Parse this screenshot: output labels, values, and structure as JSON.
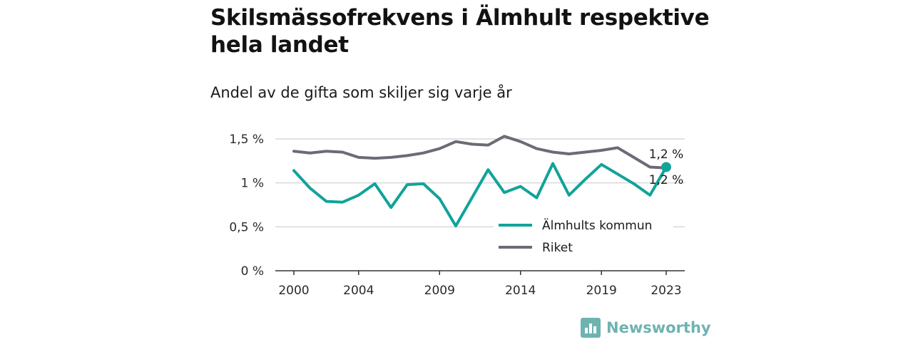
{
  "title": "Skilsmässofrekvens i Älmhult respektive hela landet",
  "subtitle": "Andel av de gifta som skiljer sig varje år",
  "brand": "Newsworthy",
  "colors": {
    "almhult": "#12a39a",
    "riket": "#6c6b75",
    "grid": "#d9d9d9",
    "axis": "#333333",
    "brand": "#6fb3b0"
  },
  "chart_data": {
    "type": "line",
    "title": "Skilsmässofrekvens i Älmhult respektive hela landet",
    "subtitle": "Andel av de gifta som skiljer sig varje år",
    "x": [
      2000,
      2001,
      2002,
      2003,
      2004,
      2005,
      2006,
      2007,
      2008,
      2009,
      2010,
      2011,
      2012,
      2013,
      2014,
      2015,
      2016,
      2017,
      2018,
      2019,
      2020,
      2021,
      2022,
      2023
    ],
    "x_ticks": [
      2000,
      2004,
      2009,
      2014,
      2019,
      2023
    ],
    "x_tick_labels": [
      "2000",
      "2004",
      "2009",
      "2014",
      "2019",
      "2023"
    ],
    "y_ticks": [
      0,
      0.5,
      1,
      1.5
    ],
    "y_tick_labels": [
      "0 %",
      "0,5 %",
      "1 %",
      "1,5 %"
    ],
    "ylim": [
      0,
      1.5
    ],
    "grid": true,
    "legend_position": "bottom-right",
    "series": [
      {
        "name": "Älmhults kommun",
        "color": "#12a39a",
        "values": [
          1.14,
          0.94,
          0.79,
          0.78,
          0.86,
          0.99,
          0.72,
          0.98,
          0.99,
          0.82,
          0.51,
          0.83,
          1.15,
          0.89,
          0.96,
          0.83,
          1.22,
          0.86,
          1.04,
          1.21,
          1.1,
          0.99,
          0.86,
          1.18
        ],
        "end_label": "1,2 %"
      },
      {
        "name": "Riket",
        "color": "#6c6b75",
        "values": [
          1.36,
          1.34,
          1.36,
          1.35,
          1.29,
          1.28,
          1.29,
          1.31,
          1.34,
          1.39,
          1.47,
          1.44,
          1.43,
          1.53,
          1.47,
          1.39,
          1.35,
          1.33,
          1.35,
          1.37,
          1.4,
          1.29,
          1.18,
          1.17
        ],
        "end_label": "1,2 %"
      }
    ]
  }
}
